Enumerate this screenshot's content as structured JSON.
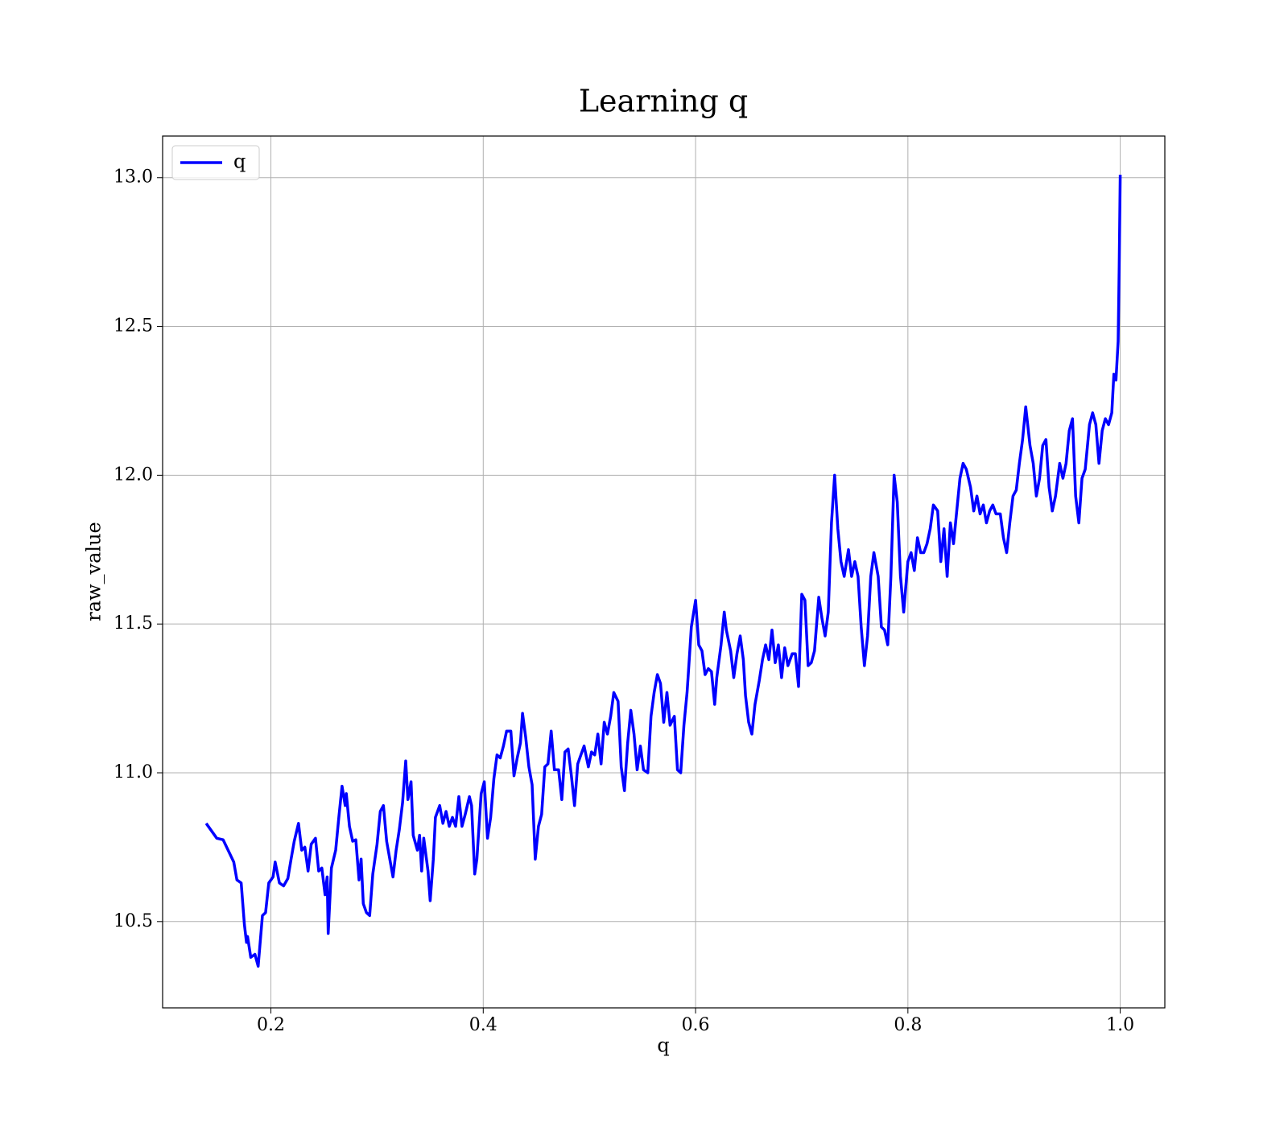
{
  "chart_data": {
    "type": "line",
    "title": "Learning q",
    "xlabel": "q",
    "ylabel": "raw_value",
    "x": [
      0.139,
      0.149,
      0.155,
      0.161,
      0.165,
      0.168,
      0.172,
      0.175,
      0.177,
      0.178,
      0.181,
      0.185,
      0.188,
      0.192,
      0.195,
      0.198,
      0.202,
      0.204,
      0.208,
      0.212,
      0.216,
      0.219,
      0.222,
      0.226,
      0.229,
      0.232,
      0.235,
      0.238,
      0.242,
      0.245,
      0.248,
      0.251,
      0.253,
      0.254,
      0.257,
      0.261,
      0.264,
      0.267,
      0.27,
      0.271,
      0.274,
      0.277,
      0.28,
      0.283,
      0.285,
      0.287,
      0.29,
      0.293,
      0.296,
      0.3,
      0.303,
      0.306,
      0.309,
      0.312,
      0.315,
      0.318,
      0.321,
      0.324,
      0.327,
      0.329,
      0.332,
      0.334,
      0.338,
      0.34,
      0.342,
      0.344,
      0.348,
      0.35,
      0.353,
      0.355,
      0.359,
      0.362,
      0.365,
      0.368,
      0.371,
      0.374,
      0.377,
      0.38,
      0.383,
      0.387,
      0.389,
      0.392,
      0.394,
      0.398,
      0.401,
      0.404,
      0.407,
      0.41,
      0.413,
      0.416,
      0.419,
      0.422,
      0.426,
      0.429,
      0.432,
      0.435,
      0.437,
      0.44,
      0.443,
      0.446,
      0.449,
      0.452,
      0.455,
      0.458,
      0.461,
      0.464,
      0.467,
      0.471,
      0.474,
      0.477,
      0.48,
      0.483,
      0.486,
      0.489,
      0.492,
      0.495,
      0.499,
      0.502,
      0.505,
      0.508,
      0.511,
      0.514,
      0.517,
      0.52,
      0.523,
      0.527,
      0.53,
      0.533,
      0.536,
      0.539,
      0.542,
      0.545,
      0.548,
      0.551,
      0.555,
      0.558,
      0.561,
      0.564,
      0.567,
      0.57,
      0.573,
      0.576,
      0.58,
      0.583,
      0.586,
      0.589,
      0.592,
      0.594,
      0.596,
      0.6,
      0.603,
      0.606,
      0.609,
      0.612,
      0.615,
      0.618,
      0.62,
      0.624,
      0.627,
      0.629,
      0.633,
      0.636,
      0.639,
      0.642,
      0.645,
      0.647,
      0.65,
      0.653,
      0.656,
      0.66,
      0.663,
      0.666,
      0.669,
      0.672,
      0.675,
      0.678,
      0.681,
      0.684,
      0.687,
      0.691,
      0.694,
      0.697,
      0.7,
      0.703,
      0.706,
      0.709,
      0.712,
      0.716,
      0.719,
      0.722,
      0.725,
      0.728,
      0.731,
      0.734,
      0.737,
      0.74,
      0.744,
      0.747,
      0.75,
      0.753,
      0.756,
      0.759,
      0.762,
      0.765,
      0.768,
      0.772,
      0.775,
      0.778,
      0.781,
      0.784,
      0.787,
      0.79,
      0.793,
      0.796,
      0.8,
      0.803,
      0.806,
      0.809,
      0.812,
      0.815,
      0.818,
      0.821,
      0.824,
      0.828,
      0.831,
      0.834,
      0.837,
      0.84,
      0.843,
      0.846,
      0.849,
      0.852,
      0.855,
      0.859,
      0.862,
      0.865,
      0.868,
      0.871,
      0.874,
      0.877,
      0.88,
      0.883,
      0.887,
      0.89,
      0.893,
      0.896,
      0.899,
      0.902,
      0.905,
      0.908,
      0.911,
      0.915,
      0.918,
      0.921,
      0.924,
      0.927,
      0.93,
      0.933,
      0.936,
      0.939,
      0.943,
      0.946,
      0.949,
      0.952,
      0.955,
      0.958,
      0.961,
      0.964,
      0.967,
      0.971,
      0.974,
      0.977,
      0.98,
      0.983,
      0.986,
      0.989,
      0.992,
      0.994,
      0.996,
      0.998,
      0.999,
      1.0
    ],
    "series": [
      {
        "name": "q",
        "color": "#0000ff",
        "values": [
          10.83,
          10.78,
          10.775,
          10.73,
          10.7,
          10.64,
          10.63,
          10.49,
          10.43,
          10.45,
          10.38,
          10.39,
          10.35,
          10.52,
          10.53,
          10.63,
          10.65,
          10.7,
          10.63,
          10.62,
          10.645,
          10.71,
          10.77,
          10.83,
          10.74,
          10.75,
          10.67,
          10.76,
          10.78,
          10.67,
          10.68,
          10.59,
          10.65,
          10.46,
          10.68,
          10.74,
          10.85,
          10.955,
          10.89,
          10.93,
          10.82,
          10.77,
          10.775,
          10.64,
          10.71,
          10.56,
          10.53,
          10.52,
          10.66,
          10.76,
          10.87,
          10.89,
          10.77,
          10.71,
          10.65,
          10.74,
          10.81,
          10.9,
          11.04,
          10.91,
          10.97,
          10.79,
          10.74,
          10.79,
          10.67,
          10.78,
          10.67,
          10.57,
          10.71,
          10.85,
          10.89,
          10.83,
          10.87,
          10.82,
          10.85,
          10.82,
          10.92,
          10.82,
          10.86,
          10.92,
          10.89,
          10.66,
          10.71,
          10.93,
          10.97,
          10.78,
          10.85,
          10.98,
          11.06,
          11.05,
          11.09,
          11.14,
          11.14,
          10.99,
          11.05,
          11.1,
          11.2,
          11.12,
          11.02,
          10.96,
          10.71,
          10.82,
          10.86,
          11.02,
          11.03,
          11.14,
          11.01,
          11.01,
          10.91,
          11.07,
          11.08,
          10.99,
          10.89,
          11.03,
          11.06,
          11.09,
          11.02,
          11.07,
          11.06,
          11.13,
          11.03,
          11.17,
          11.13,
          11.19,
          11.27,
          11.24,
          11.02,
          10.94,
          11.1,
          11.21,
          11.13,
          11.01,
          11.09,
          11.01,
          11.0,
          11.19,
          11.27,
          11.33,
          11.3,
          11.17,
          11.27,
          11.16,
          11.19,
          11.01,
          11.0,
          11.16,
          11.27,
          11.38,
          11.49,
          11.58,
          11.43,
          11.41,
          11.33,
          11.35,
          11.34,
          11.23,
          11.32,
          11.43,
          11.54,
          11.48,
          11.41,
          11.32,
          11.4,
          11.46,
          11.38,
          11.26,
          11.17,
          11.13,
          11.23,
          11.31,
          11.38,
          11.43,
          11.38,
          11.48,
          11.37,
          11.43,
          11.32,
          11.42,
          11.36,
          11.4,
          11.4,
          11.29,
          11.6,
          11.58,
          11.36,
          11.37,
          11.41,
          11.59,
          11.52,
          11.46,
          11.54,
          11.84,
          12.0,
          11.82,
          11.71,
          11.66,
          11.75,
          11.66,
          11.71,
          11.66,
          11.49,
          11.36,
          11.46,
          11.66,
          11.74,
          11.66,
          11.49,
          11.48,
          11.43,
          11.66,
          12.0,
          11.91,
          11.66,
          11.54,
          11.71,
          11.74,
          11.68,
          11.79,
          11.74,
          11.74,
          11.77,
          11.82,
          11.9,
          11.88,
          11.71,
          11.82,
          11.66,
          11.84,
          11.77,
          11.88,
          11.99,
          12.04,
          12.02,
          11.96,
          11.88,
          11.93,
          11.87,
          11.9,
          11.84,
          11.88,
          11.9,
          11.87,
          11.87,
          11.79,
          11.74,
          11.84,
          11.93,
          11.95,
          12.04,
          12.12,
          12.23,
          12.1,
          12.04,
          11.93,
          11.99,
          12.1,
          12.12,
          11.96,
          11.88,
          11.93,
          12.04,
          11.99,
          12.04,
          12.15,
          12.19,
          11.93,
          11.84,
          11.99,
          12.02,
          12.17,
          12.21,
          12.17,
          12.04,
          12.15,
          12.19,
          12.17,
          12.21,
          12.34,
          12.32,
          12.45,
          12.7,
          13.01
        ]
      }
    ],
    "xlim": [
      0.098,
      1.042
    ],
    "xticks": [
      0.2,
      0.4,
      0.6,
      0.8,
      {
        "value": 1,
        "label": "1.0"
      }
    ],
    "ylim": [
      10.21,
      13.14
    ],
    "yticks": [
      10.5,
      {
        "value": 11,
        "label": "11.0"
      },
      11.5,
      {
        "value": 12,
        "label": "12.0"
      },
      12.5,
      {
        "value": 13,
        "label": "13.0"
      }
    ],
    "grid": true,
    "legend": "upper left"
  }
}
